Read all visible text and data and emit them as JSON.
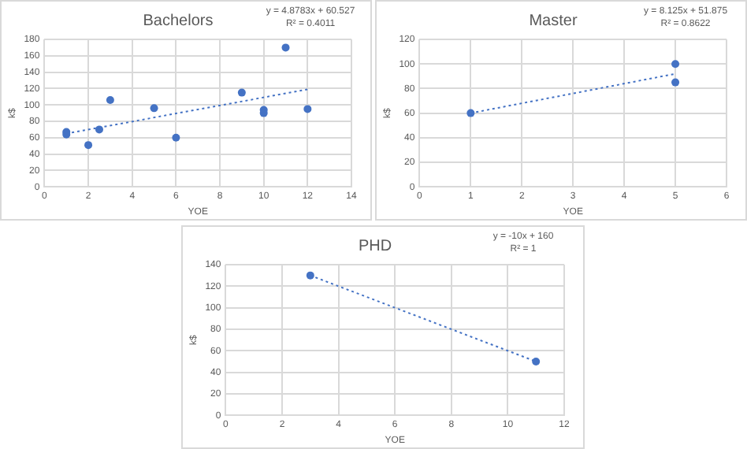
{
  "chart_data": [
    {
      "type": "scatter",
      "title": "Bachelors",
      "xlabel": "YOE",
      "ylabel": "k$",
      "xlim": [
        0,
        14
      ],
      "xticks": [
        0,
        2,
        4,
        6,
        8,
        10,
        12,
        14
      ],
      "ylim": [
        0,
        180
      ],
      "yticks": [
        0,
        20,
        40,
        60,
        80,
        100,
        120,
        140,
        160,
        180
      ],
      "grid": true,
      "legend": false,
      "annotations": [
        "y = 4.8783x + 60.527",
        "R² = 0.4011"
      ],
      "series": [
        {
          "color": "#4472c4",
          "marker": "circle",
          "x": [
            1,
            1,
            2,
            2.5,
            3,
            5,
            6,
            9,
            10,
            10,
            11,
            12
          ],
          "values": [
            67,
            64,
            51,
            70,
            106,
            96,
            60,
            115,
            94,
            90,
            170,
            95
          ]
        },
        {
          "type": "line",
          "color": "#4472c4",
          "line_style": "dotted",
          "marker": "none",
          "x": [
            1,
            12
          ],
          "values": [
            65,
            119
          ]
        }
      ]
    },
    {
      "type": "scatter",
      "title": "Master",
      "xlabel": "YOE",
      "ylabel": "k$",
      "xlim": [
        0,
        6
      ],
      "xticks": [
        0,
        1,
        2,
        3,
        4,
        5,
        6
      ],
      "ylim": [
        0,
        120
      ],
      "yticks": [
        0,
        20,
        40,
        60,
        80,
        100,
        120
      ],
      "grid": true,
      "legend": false,
      "annotations": [
        "y = 8.125x + 51.875",
        "R² = 0.8622"
      ],
      "series": [
        {
          "color": "#4472c4",
          "marker": "circle",
          "x": [
            1,
            5,
            5
          ],
          "values": [
            60,
            100,
            85
          ]
        },
        {
          "type": "line",
          "color": "#4472c4",
          "line_style": "dotted",
          "marker": "none",
          "x": [
            1,
            5
          ],
          "values": [
            60,
            92
          ]
        }
      ]
    },
    {
      "type": "scatter",
      "title": "PHD",
      "xlabel": "YOE",
      "ylabel": "k$",
      "xlim": [
        0,
        12
      ],
      "xticks": [
        0,
        2,
        4,
        6,
        8,
        10,
        12
      ],
      "ylim": [
        0,
        140
      ],
      "yticks": [
        0,
        20,
        40,
        60,
        80,
        100,
        120,
        140
      ],
      "grid": true,
      "legend": false,
      "annotations": [
        "y = -10x + 160",
        "R² = 1"
      ],
      "series": [
        {
          "color": "#4472c4",
          "marker": "circle",
          "x": [
            3,
            11
          ],
          "values": [
            130,
            50
          ]
        },
        {
          "type": "line",
          "color": "#4472c4",
          "line_style": "dotted",
          "marker": "none",
          "x": [
            3,
            11
          ],
          "values": [
            130,
            50
          ]
        }
      ]
    }
  ]
}
